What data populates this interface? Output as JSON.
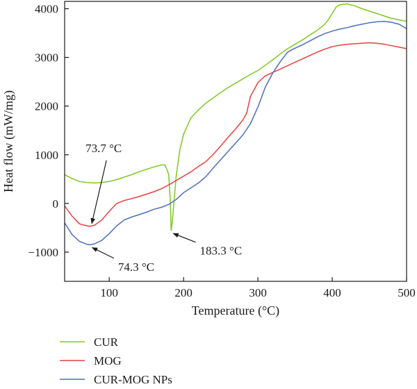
{
  "chart_data": {
    "type": "line",
    "title": "",
    "xlabel": "Temperature (°C)",
    "ylabel": "Heat flow (mW/mg)",
    "xlim": [
      40,
      500
    ],
    "ylim": [
      -1600,
      4150
    ],
    "xticks": [
      100,
      200,
      300,
      400,
      500
    ],
    "yticks": [
      -1000,
      0,
      1000,
      2000,
      3000,
      4000
    ],
    "xtick_labels": [
      "100",
      "200",
      "300",
      "400",
      "500"
    ],
    "ytick_labels": [
      "−1000",
      "0",
      "1000",
      "2000",
      "3000",
      "4000"
    ],
    "grid": false,
    "legend_position": "bottom-left, below plot",
    "series": [
      {
        "name": "CUR",
        "color": "#7dc91f",
        "x": [
          40,
          50,
          60,
          70,
          80,
          90,
          100,
          110,
          120,
          130,
          140,
          150,
          160,
          170,
          175,
          180,
          182,
          183.3,
          185,
          190,
          195,
          200,
          210,
          220,
          230,
          240,
          250,
          260,
          270,
          280,
          290,
          300,
          310,
          320,
          330,
          340,
          350,
          360,
          370,
          380,
          390,
          395,
          400,
          405,
          410,
          420,
          430,
          440,
          450,
          460,
          470,
          480,
          490,
          500
        ],
        "y": [
          590,
          510,
          450,
          430,
          420,
          430,
          450,
          490,
          540,
          590,
          650,
          700,
          750,
          790,
          790,
          600,
          100,
          -560,
          -350,
          550,
          1100,
          1420,
          1760,
          1920,
          2060,
          2170,
          2280,
          2380,
          2470,
          2560,
          2650,
          2730,
          2840,
          2950,
          3070,
          3180,
          3270,
          3360,
          3460,
          3560,
          3680,
          3780,
          3900,
          4030,
          4080,
          4100,
          4060,
          4000,
          3950,
          3900,
          3850,
          3800,
          3770,
          3740
        ]
      },
      {
        "name": "MOG",
        "color": "#ee3d3d",
        "x": [
          40,
          50,
          60,
          70,
          73.7,
          80,
          90,
          100,
          110,
          120,
          130,
          140,
          150,
          160,
          170,
          180,
          190,
          200,
          210,
          220,
          230,
          240,
          250,
          260,
          270,
          280,
          285,
          290,
          300,
          310,
          320,
          330,
          340,
          350,
          360,
          370,
          380,
          390,
          400,
          410,
          420,
          430,
          440,
          450,
          460,
          470,
          480,
          490,
          500
        ],
        "y": [
          -50,
          -260,
          -420,
          -460,
          -470,
          -450,
          -340,
          -160,
          0,
          60,
          100,
          140,
          190,
          240,
          300,
          380,
          470,
          560,
          650,
          760,
          860,
          1010,
          1180,
          1360,
          1530,
          1720,
          1860,
          2200,
          2480,
          2620,
          2690,
          2760,
          2830,
          2900,
          2970,
          3040,
          3110,
          3170,
          3220,
          3250,
          3270,
          3280,
          3290,
          3300,
          3290,
          3270,
          3240,
          3210,
          3180
        ]
      },
      {
        "name": "CUR-MOG NPs",
        "color": "#4a6fbd",
        "x": [
          40,
          50,
          60,
          70,
          74.3,
          80,
          90,
          100,
          110,
          120,
          130,
          140,
          150,
          160,
          170,
          180,
          190,
          200,
          210,
          220,
          230,
          240,
          250,
          260,
          270,
          280,
          290,
          300,
          310,
          320,
          330,
          340,
          350,
          360,
          370,
          380,
          390,
          400,
          410,
          420,
          430,
          440,
          450,
          460,
          470,
          480,
          490,
          500
        ],
        "y": [
          -400,
          -640,
          -780,
          -840,
          -850,
          -830,
          -760,
          -620,
          -460,
          -340,
          -280,
          -230,
          -180,
          -120,
          -80,
          -20,
          80,
          220,
          320,
          420,
          550,
          730,
          900,
          1070,
          1240,
          1410,
          1640,
          1980,
          2390,
          2680,
          2910,
          3110,
          3190,
          3260,
          3340,
          3420,
          3490,
          3540,
          3580,
          3610,
          3650,
          3680,
          3710,
          3730,
          3740,
          3720,
          3680,
          3590
        ]
      }
    ],
    "annotations": [
      {
        "text": "73.7 °C",
        "x": 73.7,
        "y": -470,
        "label_x": 100,
        "label_y": 1000
      },
      {
        "text": "74.3 °C",
        "x": 74.3,
        "y": -850,
        "label_x": 110,
        "label_y": -1240
      },
      {
        "text": "183.3 °C",
        "x": 183.3,
        "y": -560,
        "label_x": 220,
        "label_y": -910
      }
    ]
  }
}
